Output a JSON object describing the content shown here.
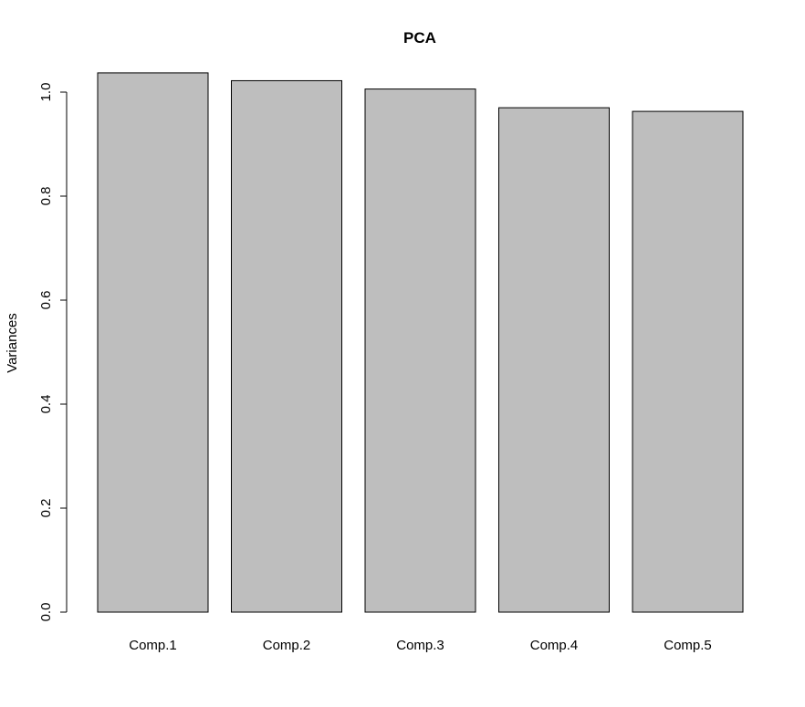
{
  "chart_data": {
    "type": "bar",
    "title": "PCA",
    "ylabel": "Variances",
    "xlabel": "",
    "categories": [
      "Comp.1",
      "Comp.2",
      "Comp.3",
      "Comp.4",
      "Comp.5"
    ],
    "values": [
      1.037,
      1.022,
      1.006,
      0.97,
      0.963
    ],
    "ylim": [
      0,
      1.04
    ],
    "yticks": [
      0.0,
      0.2,
      0.4,
      0.6,
      0.8,
      1.0
    ],
    "ytick_labels": [
      "0.0",
      "0.2",
      "0.4",
      "0.6",
      "0.8",
      "1.0"
    ],
    "bar_color": "#bebebe",
    "bar_border_color": "#000000",
    "grid": false,
    "legend": "none"
  }
}
